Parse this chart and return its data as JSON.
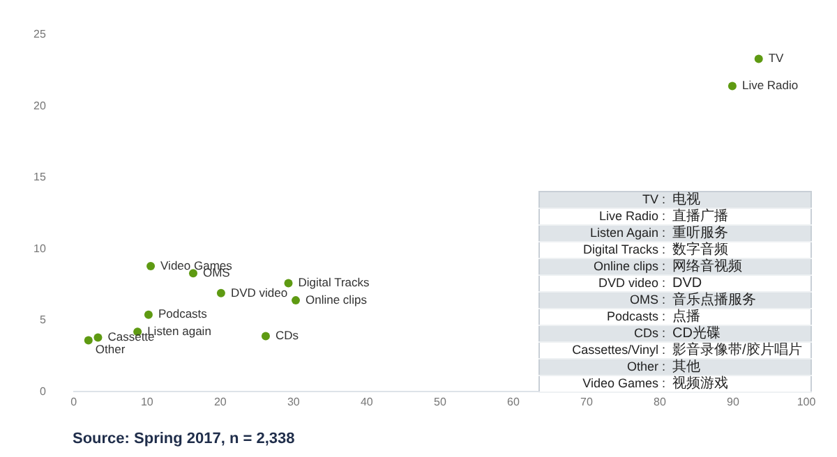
{
  "chart_data": {
    "type": "scatter",
    "xlim": [
      0,
      100
    ],
    "xticks": [
      0,
      10,
      20,
      30,
      40,
      50,
      60,
      70,
      80,
      90,
      100
    ],
    "ylim": [
      0,
      25
    ],
    "yticks": [
      0,
      5,
      10,
      15,
      20,
      25
    ],
    "grid": false,
    "legend": false,
    "marker": "circle",
    "series": [
      {
        "name": "TV",
        "color": "#5e9a12",
        "x": [
          93.5
        ],
        "values": [
          23.3
        ]
      },
      {
        "name": "Live Radio",
        "color": "#5e9a12",
        "x": [
          89.9
        ],
        "values": [
          21.4
        ]
      },
      {
        "name": "Video Games",
        "color": "#5e9a12",
        "x": [
          10.5
        ],
        "values": [
          8.8
        ]
      },
      {
        "name": "OMS",
        "color": "#5e9a12",
        "x": [
          16.3
        ],
        "values": [
          8.3
        ]
      },
      {
        "name": "Digital Tracks",
        "color": "#5e9a12",
        "x": [
          29.3
        ],
        "values": [
          7.6
        ]
      },
      {
        "name": "DVD video",
        "color": "#5e9a12",
        "x": [
          20.1
        ],
        "values": [
          6.9
        ]
      },
      {
        "name": "Online clips",
        "color": "#5e9a12",
        "x": [
          30.3
        ],
        "values": [
          6.4
        ]
      },
      {
        "name": "Podcasts",
        "color": "#5e9a12",
        "x": [
          10.2
        ],
        "values": [
          5.4
        ]
      },
      {
        "name": "Listen again",
        "color": "#5e9a12",
        "x": [
          8.7
        ],
        "values": [
          4.2
        ]
      },
      {
        "name": "CDs",
        "color": "#5e9a12",
        "x": [
          26.2
        ],
        "values": [
          3.9
        ]
      },
      {
        "name": "Cassette",
        "color": "#5e9a12",
        "x": [
          3.3
        ],
        "values": [
          3.8
        ]
      },
      {
        "name": "Other",
        "color": "#5e9a12",
        "x": [
          2.0
        ],
        "values": [
          3.6
        ]
      }
    ],
    "annotations": [
      "Source: Spring 2017, n = 2,338",
      "TV : 电视",
      "Live Radio : 直播广播",
      "Listen Again : 重听服务",
      "Digital Tracks : 数字音频",
      "Online clips : 网络音视频",
      "DVD video : DVD",
      "OMS : 音乐点播服务",
      "Podcasts : 点播",
      "CDs : CD光碟",
      "Cassettes/Vinyl : 影音录像带/胶片唱片",
      "Other : 其他",
      "Video Games : 视频游戏"
    ]
  }
}
